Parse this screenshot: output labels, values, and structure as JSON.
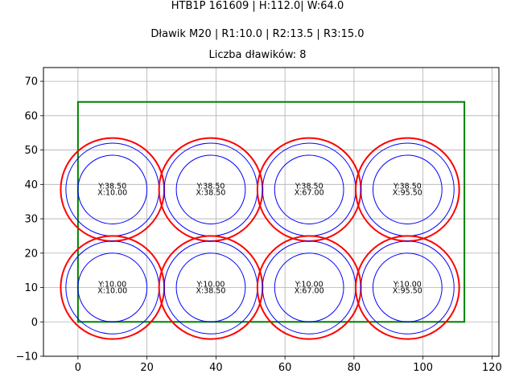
{
  "chart_data": {
    "type": "scatter",
    "titles": [
      "HTB1P 161609 | H:112.0| W:64.0",
      "Dławik M20 | R1:10.0 | R2:13.5 | R3:15.0",
      "Liczba dławików: 8"
    ],
    "xlim": [
      -10,
      122
    ],
    "ylim": [
      -10,
      74
    ],
    "xticks": [
      0,
      20,
      40,
      60,
      80,
      100,
      120
    ],
    "yticks": [
      -10,
      0,
      10,
      20,
      30,
      40,
      50,
      60,
      70
    ],
    "grid": true,
    "rectangle": {
      "x": 0,
      "y": 0,
      "width": 112.0,
      "height": 64.0,
      "color": "#008000"
    },
    "radii": {
      "r1": 10.0,
      "r2": 13.5,
      "r3": 15.0
    },
    "colors": {
      "inner": "#0000ff",
      "outer": "#ff0000"
    },
    "glands": [
      {
        "x": 10.0,
        "y": 38.5,
        "y_label": "Y:38.50",
        "x_label": "X:10.00"
      },
      {
        "x": 38.5,
        "y": 38.5,
        "y_label": "Y:38.50",
        "x_label": "X:38.50"
      },
      {
        "x": 67.0,
        "y": 38.5,
        "y_label": "Y:38.50",
        "x_label": "X:67.00"
      },
      {
        "x": 95.5,
        "y": 38.5,
        "y_label": "Y:38.50",
        "x_label": "X:95.50"
      },
      {
        "x": 10.0,
        "y": 10.0,
        "y_label": "Y:10.00",
        "x_label": "X:10.00"
      },
      {
        "x": 38.5,
        "y": 10.0,
        "y_label": "Y:10.00",
        "x_label": "X:38.50"
      },
      {
        "x": 67.0,
        "y": 10.0,
        "y_label": "Y:10.00",
        "x_label": "X:67.00"
      },
      {
        "x": 95.5,
        "y": 10.0,
        "y_label": "Y:10.00",
        "x_label": "X:95.50"
      }
    ]
  }
}
